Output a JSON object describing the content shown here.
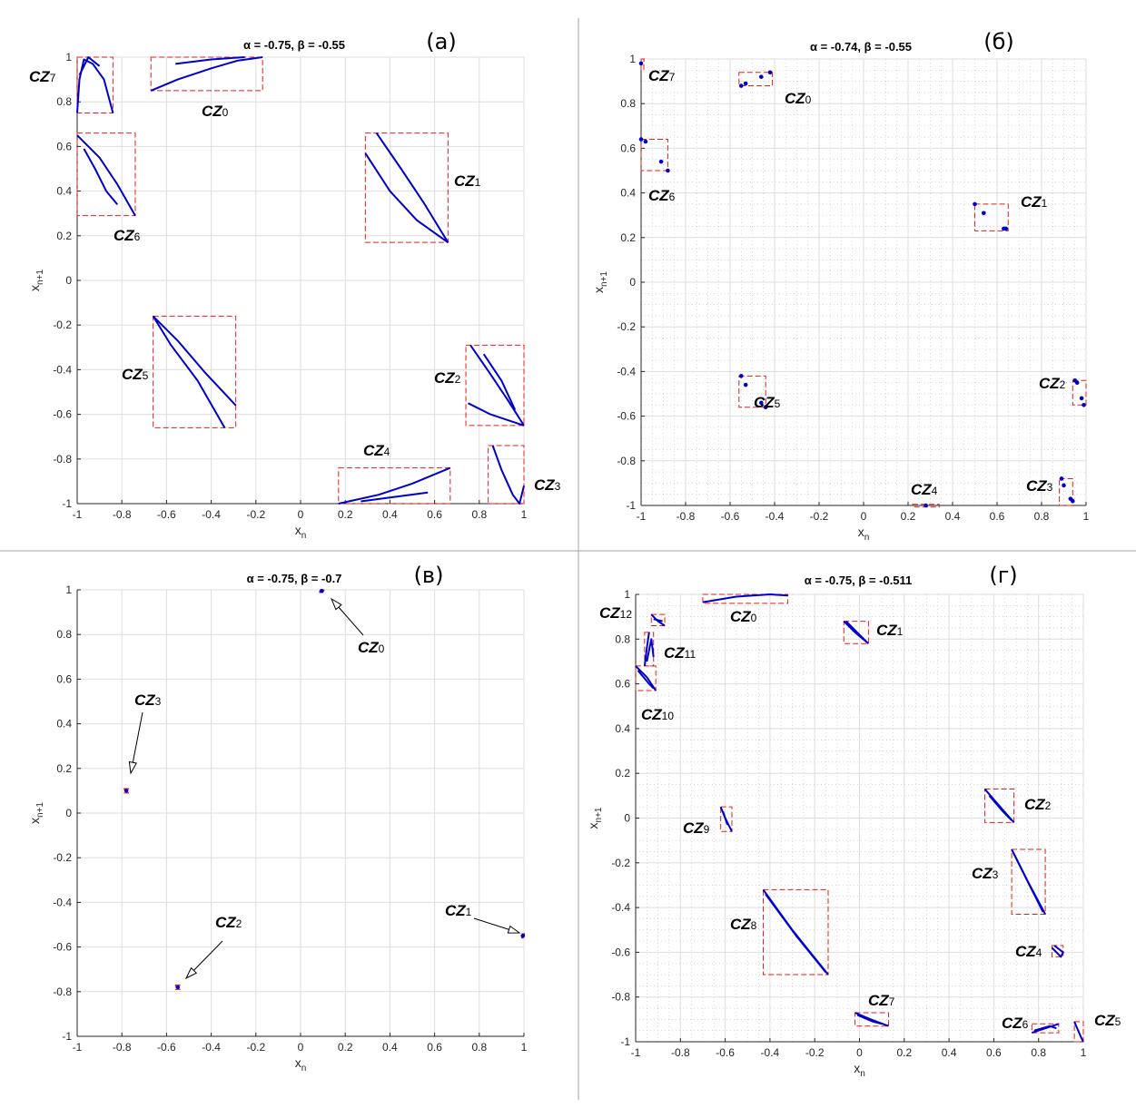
{
  "chart_data": [
    {
      "type": "scatter",
      "panel_label": "(а)",
      "title": "α = -0.75, β = -0.55",
      "xlabel": "x_n",
      "ylabel": "x_n+1",
      "xlim": [
        -1,
        1
      ],
      "ylim": [
        -1,
        1
      ],
      "x_ticks": [
        "-1",
        "-0.8",
        "-0.6",
        "-0.4",
        "-0.2",
        "0",
        "0.2",
        "0.4",
        "0.6",
        "0.8",
        "1"
      ],
      "y_ticks": [
        "-1",
        "-0.8",
        "-0.6",
        "-0.4",
        "-0.2",
        "0",
        "0.2",
        "0.4",
        "0.6",
        "0.8",
        "1"
      ],
      "grid": "major",
      "boxes": [
        {
          "name": "CZ",
          "sub": "0",
          "x": [
            -0.67,
            -0.17
          ],
          "y": [
            0.85,
            1.0
          ]
        },
        {
          "name": "CZ",
          "sub": "1",
          "x": [
            0.29,
            0.66
          ],
          "y": [
            0.17,
            0.66
          ]
        },
        {
          "name": "CZ",
          "sub": "2",
          "x": [
            0.74,
            1.0
          ],
          "y": [
            -0.65,
            -0.29
          ]
        },
        {
          "name": "CZ",
          "sub": "3",
          "x": [
            0.84,
            1.0
          ],
          "y": [
            -1.0,
            -0.74
          ]
        },
        {
          "name": "CZ",
          "sub": "4",
          "x": [
            0.17,
            0.67
          ],
          "y": [
            -1.0,
            -0.84
          ]
        },
        {
          "name": "CZ",
          "sub": "5",
          "x": [
            -0.66,
            -0.29
          ],
          "y": [
            -0.66,
            -0.16
          ]
        },
        {
          "name": "CZ",
          "sub": "6",
          "x": [
            -1.0,
            -0.74
          ],
          "y": [
            0.29,
            0.66
          ]
        },
        {
          "name": "CZ",
          "sub": "7",
          "x": [
            -1.0,
            -0.84
          ],
          "y": [
            0.75,
            1.0
          ]
        }
      ],
      "curves": [
        [
          [
            -0.67,
            0.85
          ],
          [
            -0.55,
            0.9
          ],
          [
            -0.4,
            0.95
          ],
          [
            -0.28,
            0.985
          ],
          [
            -0.17,
            1.0
          ]
        ],
        [
          [
            -0.56,
            0.97
          ],
          [
            -0.4,
            0.99
          ],
          [
            -0.25,
            1.0
          ]
        ],
        [
          [
            0.34,
            0.66
          ],
          [
            0.45,
            0.5
          ],
          [
            0.55,
            0.35
          ],
          [
            0.66,
            0.17
          ]
        ],
        [
          [
            0.29,
            0.57
          ],
          [
            0.4,
            0.4
          ],
          [
            0.52,
            0.27
          ],
          [
            0.66,
            0.17
          ]
        ],
        [
          [
            0.76,
            -0.29
          ],
          [
            0.85,
            -0.42
          ],
          [
            0.93,
            -0.54
          ],
          [
            1.0,
            -0.65
          ]
        ],
        [
          [
            0.82,
            -0.33
          ],
          [
            0.9,
            -0.45
          ],
          [
            0.96,
            -0.58
          ]
        ],
        [
          [
            0.75,
            -0.55
          ],
          [
            0.85,
            -0.6
          ],
          [
            1.0,
            -0.65
          ]
        ],
        [
          [
            0.86,
            -0.74
          ],
          [
            0.9,
            -0.85
          ],
          [
            0.95,
            -0.96
          ],
          [
            0.98,
            -1.0
          ],
          [
            1.0,
            -0.92
          ]
        ],
        [
          [
            0.17,
            -1.0
          ],
          [
            0.35,
            -0.96
          ],
          [
            0.5,
            -0.91
          ],
          [
            0.67,
            -0.84
          ]
        ],
        [
          [
            0.27,
            -0.99
          ],
          [
            0.42,
            -0.97
          ],
          [
            0.57,
            -0.95
          ]
        ],
        [
          [
            -0.66,
            -0.16
          ],
          [
            -0.55,
            -0.27
          ],
          [
            -0.43,
            -0.41
          ],
          [
            -0.29,
            -0.56
          ]
        ],
        [
          [
            -0.66,
            -0.16
          ],
          [
            -0.58,
            -0.29
          ],
          [
            -0.46,
            -0.45
          ],
          [
            -0.34,
            -0.66
          ]
        ],
        [
          [
            -1.0,
            0.65
          ],
          [
            -0.9,
            0.55
          ],
          [
            -0.82,
            0.43
          ],
          [
            -0.74,
            0.29
          ]
        ],
        [
          [
            -0.97,
            0.59
          ],
          [
            -0.92,
            0.5
          ],
          [
            -0.87,
            0.4
          ],
          [
            -0.82,
            0.34
          ]
        ],
        [
          [
            -1.0,
            0.75
          ],
          [
            -0.99,
            0.9
          ],
          [
            -0.97,
            0.99
          ],
          [
            -0.93,
            0.97
          ],
          [
            -0.88,
            0.9
          ],
          [
            -0.84,
            0.75
          ]
        ],
        [
          [
            -0.99,
            0.92
          ],
          [
            -0.95,
            1.0
          ],
          [
            -0.9,
            0.96
          ]
        ]
      ],
      "points": []
    },
    {
      "type": "scatter",
      "panel_label": "(б)",
      "title": "α = -0.74, β = -0.55",
      "xlabel": "x_n",
      "ylabel": "x_n+1",
      "xlim": [
        -1,
        1
      ],
      "ylim": [
        -1,
        1
      ],
      "x_ticks": [
        "-1",
        "-0.8",
        "-0.6",
        "-0.4",
        "-0.2",
        "0",
        "0.2",
        "0.4",
        "0.6",
        "0.8",
        "1"
      ],
      "y_ticks": [
        "-1",
        "-0.8",
        "-0.6",
        "-0.4",
        "-0.2",
        "0",
        "0.2",
        "0.4",
        "0.6",
        "0.8",
        "1"
      ],
      "grid": "major+minor",
      "boxes": [
        {
          "name": "CZ",
          "sub": "0",
          "x": [
            -0.56,
            -0.41
          ],
          "y": [
            0.88,
            0.94
          ]
        },
        {
          "name": "CZ",
          "sub": "1",
          "x": [
            0.5,
            0.65
          ],
          "y": [
            0.23,
            0.35
          ]
        },
        {
          "name": "CZ",
          "sub": "2",
          "x": [
            0.94,
            1.0
          ],
          "y": [
            -0.55,
            -0.44
          ]
        },
        {
          "name": "CZ",
          "sub": "3",
          "x": [
            0.88,
            0.94
          ],
          "y": [
            -1.0,
            -0.88
          ]
        },
        {
          "name": "CZ",
          "sub": "4",
          "x": [
            0.22,
            0.34
          ],
          "y": [
            -1.0,
            -0.995
          ]
        },
        {
          "name": "CZ",
          "sub": "5",
          "x": [
            -0.56,
            -0.44
          ],
          "y": [
            -0.56,
            -0.42
          ]
        },
        {
          "name": "CZ",
          "sub": "6",
          "x": [
            -1.0,
            -0.88
          ],
          "y": [
            0.5,
            0.64
          ]
        },
        {
          "name": "CZ",
          "sub": "7",
          "x": [
            -1.0,
            -0.995
          ],
          "y": [
            0.95,
            1.0
          ]
        }
      ],
      "curves": [],
      "points": [
        [
          -0.55,
          0.88
        ],
        [
          -0.53,
          0.89
        ],
        [
          -0.46,
          0.92
        ],
        [
          -0.42,
          0.94
        ],
        [
          0.5,
          0.35
        ],
        [
          0.54,
          0.31
        ],
        [
          0.63,
          0.24
        ],
        [
          0.64,
          0.24
        ],
        [
          0.95,
          -0.44
        ],
        [
          0.96,
          -0.45
        ],
        [
          0.98,
          -0.52
        ],
        [
          0.99,
          -0.55
        ],
        [
          0.89,
          -0.88
        ],
        [
          0.9,
          -0.91
        ],
        [
          0.93,
          -0.97
        ],
        [
          0.94,
          -0.98
        ],
        [
          -0.55,
          -0.42
        ],
        [
          -0.53,
          -0.46
        ],
        [
          -0.46,
          -0.54
        ],
        [
          -0.44,
          -0.56
        ],
        [
          -1.0,
          0.64
        ],
        [
          -0.98,
          0.63
        ],
        [
          -0.91,
          0.54
        ],
        [
          -0.88,
          0.5
        ],
        [
          -1.0,
          0.98
        ],
        [
          0.28,
          -1.0
        ]
      ]
    },
    {
      "type": "scatter",
      "panel_label": "(в)",
      "title": "α = -0.75, β = -0.7",
      "xlabel": "x_n",
      "ylabel": "x_n+1",
      "xlim": [
        -1,
        1
      ],
      "ylim": [
        -1,
        1
      ],
      "x_ticks": [
        "-1",
        "-0.8",
        "-0.6",
        "-0.4",
        "-0.2",
        "0",
        "0.2",
        "0.4",
        "0.6",
        "0.8",
        "1"
      ],
      "y_ticks": [
        "-1",
        "-0.8",
        "-0.6",
        "-0.4",
        "-0.2",
        "0",
        "0.2",
        "0.4",
        "0.6",
        "0.8",
        "1"
      ],
      "grid": "major",
      "boxes": [
        {
          "name": "CZ",
          "sub": "0",
          "x": [
            0.085,
            0.105
          ],
          "y": [
            0.99,
            1.0
          ]
        },
        {
          "name": "CZ",
          "sub": "1",
          "x": [
            0.99,
            1.0
          ],
          "y": [
            -0.56,
            -0.54
          ]
        },
        {
          "name": "CZ",
          "sub": "2",
          "x": [
            -0.56,
            -0.54
          ],
          "y": [
            -0.79,
            -0.77
          ]
        },
        {
          "name": "CZ",
          "sub": "3",
          "x": [
            -0.79,
            -0.77
          ],
          "y": [
            0.09,
            0.11
          ]
        }
      ],
      "curves": [],
      "points": [
        [
          0.095,
          0.995
        ],
        [
          0.995,
          -0.55
        ],
        [
          -0.55,
          -0.78
        ],
        [
          -0.78,
          0.1
        ]
      ]
    },
    {
      "type": "scatter",
      "panel_label": "(г)",
      "title": "α = -0.75, β = -0.511",
      "xlabel": "x_n",
      "ylabel": "x_n+1",
      "xlim": [
        -1,
        1
      ],
      "ylim": [
        -1,
        1
      ],
      "x_ticks": [
        "-1",
        "-0.8",
        "-0.6",
        "-0.4",
        "-0.2",
        "0",
        "0.2",
        "0.4",
        "0.6",
        "0.8",
        "1"
      ],
      "y_ticks": [
        "-1",
        "-0.8",
        "-0.6",
        "-0.4",
        "-0.2",
        "0",
        "0.2",
        "0.4",
        "0.6",
        "0.8",
        "1"
      ],
      "grid": "major+minor",
      "boxes": [
        {
          "name": "CZ",
          "sub": "0",
          "x": [
            -0.7,
            -0.32
          ],
          "y": [
            0.96,
            1.0
          ]
        },
        {
          "name": "CZ",
          "sub": "1",
          "x": [
            -0.07,
            0.04
          ],
          "y": [
            0.78,
            0.88
          ]
        },
        {
          "name": "CZ",
          "sub": "2",
          "x": [
            0.56,
            0.69
          ],
          "y": [
            -0.02,
            0.13
          ]
        },
        {
          "name": "CZ",
          "sub": "3",
          "x": [
            0.68,
            0.83
          ],
          "y": [
            -0.43,
            -0.14
          ]
        },
        {
          "name": "CZ",
          "sub": "4",
          "x": [
            0.86,
            0.91
          ],
          "y": [
            -0.62,
            -0.57
          ]
        },
        {
          "name": "CZ",
          "sub": "5",
          "x": [
            0.96,
            1.0
          ],
          "y": [
            -1.0,
            -0.91
          ]
        },
        {
          "name": "CZ",
          "sub": "6",
          "x": [
            0.77,
            0.89
          ],
          "y": [
            -0.96,
            -0.92
          ]
        },
        {
          "name": "CZ",
          "sub": "7",
          "x": [
            -0.02,
            0.13
          ],
          "y": [
            -0.93,
            -0.87
          ]
        },
        {
          "name": "CZ",
          "sub": "8",
          "x": [
            -0.43,
            -0.14
          ],
          "y": [
            -0.7,
            -0.32
          ]
        },
        {
          "name": "CZ",
          "sub": "9",
          "x": [
            -0.62,
            -0.57
          ],
          "y": [
            -0.06,
            0.05
          ]
        },
        {
          "name": "CZ",
          "sub": "10",
          "x": [
            -1.0,
            -0.91
          ],
          "y": [
            0.57,
            0.68
          ]
        },
        {
          "name": "CZ",
          "sub": "11",
          "x": [
            -0.96,
            -0.92
          ],
          "y": [
            0.68,
            0.83
          ]
        },
        {
          "name": "CZ",
          "sub": "12",
          "x": [
            -0.93,
            -0.87
          ],
          "y": [
            0.86,
            0.91
          ]
        }
      ],
      "curves": [
        [
          [
            -0.7,
            0.965
          ],
          [
            -0.55,
            0.99
          ],
          [
            -0.4,
            1.0
          ],
          [
            -0.32,
            0.995
          ]
        ],
        [
          [
            -0.07,
            0.88
          ],
          [
            -0.02,
            0.83
          ],
          [
            0.04,
            0.78
          ]
        ],
        [
          [
            -0.06,
            0.88
          ],
          [
            0.0,
            0.82
          ],
          [
            0.03,
            0.79
          ]
        ],
        [
          [
            0.56,
            0.13
          ],
          [
            0.62,
            0.06
          ],
          [
            0.69,
            -0.02
          ]
        ],
        [
          [
            0.58,
            0.1
          ],
          [
            0.64,
            0.03
          ],
          [
            0.68,
            -0.01
          ]
        ],
        [
          [
            0.68,
            -0.14
          ],
          [
            0.75,
            -0.28
          ],
          [
            0.83,
            -0.43
          ]
        ],
        [
          [
            0.69,
            -0.16
          ],
          [
            0.76,
            -0.3
          ],
          [
            0.82,
            -0.42
          ]
        ],
        [
          [
            0.86,
            -0.58
          ],
          [
            0.9,
            -0.62
          ],
          [
            0.91,
            -0.6
          ],
          [
            0.87,
            -0.57
          ]
        ],
        [
          [
            0.96,
            -0.91
          ],
          [
            0.99,
            -0.98
          ],
          [
            1.0,
            -1.0
          ]
        ],
        [
          [
            0.77,
            -0.96
          ],
          [
            0.83,
            -0.94
          ],
          [
            0.89,
            -0.92
          ]
        ],
        [
          [
            0.78,
            -0.95
          ],
          [
            0.85,
            -0.93
          ],
          [
            0.88,
            -0.94
          ]
        ],
        [
          [
            -0.02,
            -0.87
          ],
          [
            0.05,
            -0.9
          ],
          [
            0.13,
            -0.93
          ]
        ],
        [
          [
            -0.01,
            -0.88
          ],
          [
            0.06,
            -0.91
          ],
          [
            0.1,
            -0.92
          ]
        ],
        [
          [
            -0.43,
            -0.32
          ],
          [
            -0.3,
            -0.5
          ],
          [
            -0.14,
            -0.7
          ]
        ],
        [
          [
            -0.42,
            -0.34
          ],
          [
            -0.28,
            -0.53
          ],
          [
            -0.15,
            -0.69
          ]
        ],
        [
          [
            -0.62,
            0.05
          ],
          [
            -0.6,
            0.0
          ],
          [
            -0.57,
            -0.06
          ]
        ],
        [
          [
            -0.61,
            0.03
          ],
          [
            -0.59,
            -0.03
          ]
        ],
        [
          [
            -1.0,
            0.68
          ],
          [
            -0.95,
            0.63
          ],
          [
            -0.91,
            0.57
          ]
        ],
        [
          [
            -0.99,
            0.66
          ],
          [
            -0.94,
            0.6
          ],
          [
            -0.92,
            0.58
          ]
        ],
        [
          [
            -0.96,
            0.68
          ],
          [
            -0.95,
            0.76
          ],
          [
            -0.94,
            0.83
          ]
        ],
        [
          [
            -0.95,
            0.7
          ],
          [
            -0.93,
            0.8
          ],
          [
            -0.92,
            0.72
          ]
        ],
        [
          [
            -0.93,
            0.91
          ],
          [
            -0.9,
            0.88
          ],
          [
            -0.87,
            0.86
          ]
        ],
        [
          [
            -0.92,
            0.89
          ],
          [
            -0.88,
            0.88
          ]
        ]
      ],
      "points": []
    }
  ],
  "colors": {
    "curve": "#0000cc",
    "box": "#e0201a",
    "arrow": "#000000",
    "grid": "#dedede",
    "minor_grid": "#c8c8c8"
  }
}
